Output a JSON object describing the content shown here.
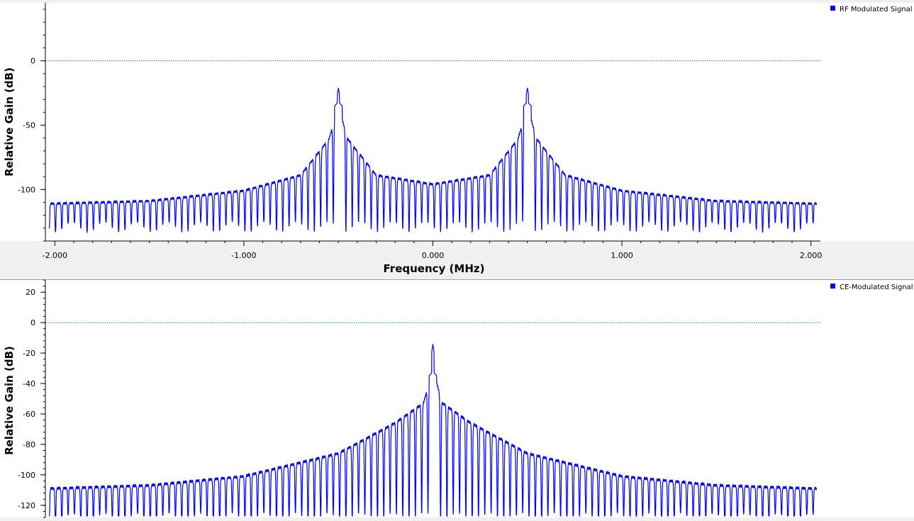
{
  "colors": {
    "trace": "#0000ff",
    "reference_line": "#008b8b",
    "plot_background": "#ffffff",
    "page_background": "#f0f0f0",
    "axis": "#000000"
  },
  "chart_data": [
    {
      "type": "line",
      "title": "",
      "xlabel": "Frequency (MHz)",
      "ylabel": "Relative Gain (dB)",
      "xlim": [
        -2.05,
        2.05
      ],
      "ylim": [
        -140,
        45
      ],
      "x_ticks": [
        -2.0,
        -1.0,
        0.0,
        1.0,
        2.0
      ],
      "x_tick_labels": [
        "-2.000",
        "-1.000",
        "0.000",
        "1.000",
        "2.000"
      ],
      "y_ticks": [
        0,
        -50,
        -100
      ],
      "y_tick_labels": [
        "0",
        "-50",
        "-100"
      ],
      "reference_line_db": 0,
      "legend": {
        "placement": "top-right",
        "entries": [
          "RF Modulated Signal"
        ]
      },
      "series": [
        {
          "name": "RF Modulated Signal",
          "carrier_peaks_mhz": [
            -0.5,
            0.5
          ],
          "peak_db": -21,
          "envelope": [
            [
              -2.0,
              -110
            ],
            [
              -1.5,
              -108
            ],
            [
              -1.0,
              -100
            ],
            [
              -0.7,
              -88
            ],
            [
              -0.55,
              -60
            ],
            [
              -0.5,
              -35
            ],
            [
              -0.45,
              -60
            ],
            [
              -0.3,
              -88
            ],
            [
              0.0,
              -95
            ],
            [
              0.3,
              -88
            ],
            [
              0.45,
              -60
            ],
            [
              0.5,
              -35
            ],
            [
              0.55,
              -60
            ],
            [
              0.7,
              -88
            ],
            [
              1.0,
              -100
            ],
            [
              1.5,
              -108
            ],
            [
              2.0,
              -110
            ]
          ],
          "null_floor_db": -125
        }
      ]
    },
    {
      "type": "line",
      "title": "",
      "xlabel": "",
      "ylabel": "Relative Gain (dB)",
      "xlim": [
        -2.05,
        2.05
      ],
      "ylim": [
        -128,
        28
      ],
      "y_ticks": [
        20,
        0,
        -20,
        -40,
        -60,
        -80,
        -100,
        -120
      ],
      "y_tick_labels": [
        "20",
        "0",
        "-20",
        "-40",
        "-60",
        "-80",
        "-100",
        "-120"
      ],
      "reference_line_db": 0,
      "legend": {
        "placement": "top-right",
        "entries": [
          "CE-Modulated Signal"
        ]
      },
      "series": [
        {
          "name": "CE-Modulated Signal",
          "carrier_peaks_mhz": [
            0.0
          ],
          "peak_db": -14,
          "envelope": [
            [
              -2.0,
              -108
            ],
            [
              -1.5,
              -106
            ],
            [
              -1.0,
              -100
            ],
            [
              -0.5,
              -85
            ],
            [
              -0.2,
              -65
            ],
            [
              -0.05,
              -52
            ],
            [
              0.0,
              -30
            ],
            [
              0.05,
              -52
            ],
            [
              0.2,
              -65
            ],
            [
              0.5,
              -85
            ],
            [
              1.0,
              -100
            ],
            [
              1.5,
              -106
            ],
            [
              2.0,
              -108
            ]
          ],
          "null_floor_db": -125
        }
      ]
    }
  ]
}
